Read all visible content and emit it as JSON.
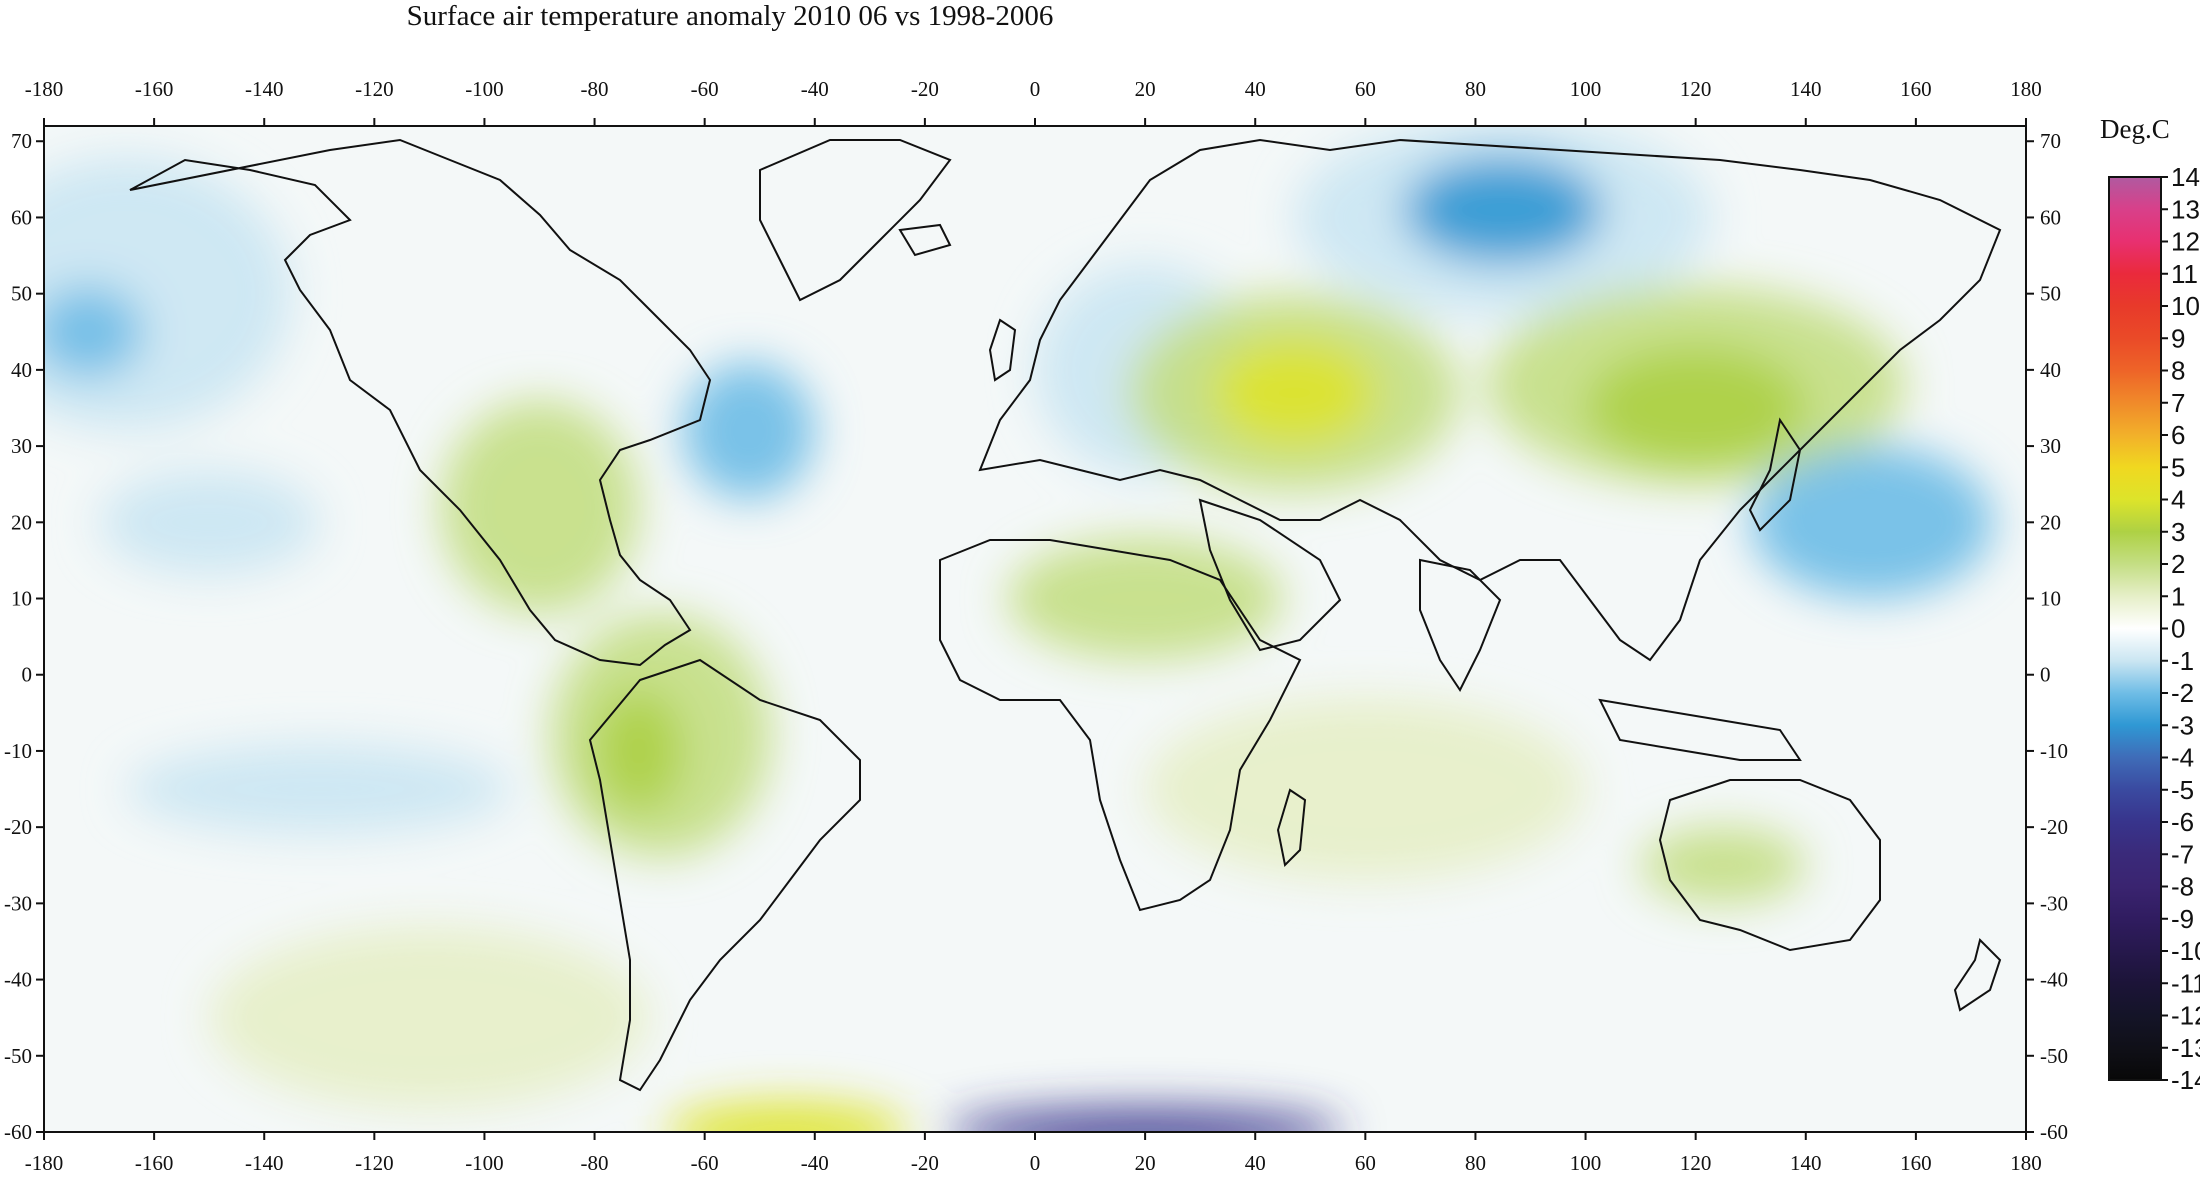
{
  "title": "Surface air temperature anomaly 2010 06 vs 1998-2006",
  "colorbar": {
    "unit_label": "Deg.C",
    "min": -14,
    "max": 14,
    "ticks": [
      14,
      13,
      12,
      11,
      10,
      9,
      8,
      7,
      6,
      5,
      4,
      3,
      2,
      1,
      0,
      -1,
      -2,
      -3,
      -4,
      -5,
      -6,
      -7,
      -8,
      -9,
      -10,
      -11,
      -12,
      -13,
      -14
    ],
    "tick_labels": [
      "14",
      "13",
      "12",
      "11",
      "10",
      "9",
      "8",
      "7",
      "6",
      "5",
      "4",
      "3",
      "2",
      "1",
      "0",
      "-1",
      "-2",
      "-3",
      "-4",
      "-5",
      "-6",
      "-7",
      "-8",
      "-9",
      "-10",
      "-11",
      "-12",
      "-13",
      "-14"
    ],
    "colors": [
      {
        "value": 14,
        "color": "#b05aa0"
      },
      {
        "value": 13,
        "color": "#d8408a"
      },
      {
        "value": 12,
        "color": "#e83070"
      },
      {
        "value": 11,
        "color": "#ea2a3c"
      },
      {
        "value": 10,
        "color": "#e83a2a"
      },
      {
        "value": 9,
        "color": "#ea4a28"
      },
      {
        "value": 8,
        "color": "#ee6428"
      },
      {
        "value": 7,
        "color": "#f08a2a"
      },
      {
        "value": 6,
        "color": "#f2b02a"
      },
      {
        "value": 5,
        "color": "#f0d820"
      },
      {
        "value": 4,
        "color": "#dde42a"
      },
      {
        "value": 3,
        "color": "#aed144"
      },
      {
        "value": 2,
        "color": "#c4de84"
      },
      {
        "value": 1,
        "color": "#e6efc8"
      },
      {
        "value": 0,
        "color": "#ffffff"
      },
      {
        "value": -1,
        "color": "#cbe6f2"
      },
      {
        "value": -2,
        "color": "#6fbde6"
      },
      {
        "value": -3,
        "color": "#2f98d4"
      },
      {
        "value": -4,
        "color": "#3f6cb8"
      },
      {
        "value": -5,
        "color": "#3a4aa0"
      },
      {
        "value": -6,
        "color": "#38348c"
      },
      {
        "value": -7,
        "color": "#3a2a7a"
      },
      {
        "value": -8,
        "color": "#3a2470"
      },
      {
        "value": -9,
        "color": "#301c60"
      },
      {
        "value": -10,
        "color": "#26184c"
      },
      {
        "value": -11,
        "color": "#1c1438"
      },
      {
        "value": -12,
        "color": "#141428"
      },
      {
        "value": -13,
        "color": "#101018"
      },
      {
        "value": -14,
        "color": "#080808"
      }
    ]
  },
  "axes": {
    "lon_range": [
      -180,
      180
    ],
    "lat_range": [
      -60,
      72
    ],
    "lon_ticks": [
      -180,
      -160,
      -140,
      -120,
      -100,
      -80,
      -60,
      -40,
      -20,
      0,
      20,
      40,
      60,
      80,
      100,
      120,
      140,
      160,
      180
    ],
    "lon_tick_labels": [
      "-180",
      "-160",
      "-140",
      "-120",
      "-100",
      "-80",
      "-60",
      "-40",
      "-20",
      "0",
      "20",
      "40",
      "60",
      "80",
      "100",
      "120",
      "140",
      "160",
      "180"
    ],
    "lat_ticks": [
      70,
      60,
      50,
      40,
      30,
      20,
      10,
      0,
      -10,
      -20,
      -30,
      -40,
      -50,
      -60
    ],
    "lat_tick_labels": [
      "70",
      "60",
      "50",
      "40",
      "30",
      "20",
      "10",
      "0",
      "-10",
      "-20",
      "-30",
      "-40",
      "-50",
      "-60"
    ]
  },
  "anomaly_regions": [
    {
      "lon": 47,
      "lat": 37,
      "value": 4,
      "rlon": 15,
      "rlat": 7
    },
    {
      "lon": 47,
      "lat": 37,
      "value": 2,
      "rlon": 30,
      "rlat": 13
    },
    {
      "lon": 120,
      "lat": 35,
      "value": 3,
      "rlon": 20,
      "rlat": 8
    },
    {
      "lon": 120,
      "lat": 38,
      "value": 2,
      "rlon": 38,
      "rlat": 13
    },
    {
      "lon": 85,
      "lat": 61,
      "value": -3,
      "rlon": 18,
      "rlat": 7
    },
    {
      "lon": 85,
      "lat": 60,
      "value": -1,
      "rlon": 38,
      "rlat": 13
    },
    {
      "lon": -90,
      "lat": 22,
      "value": 2,
      "rlon": 18,
      "rlat": 14
    },
    {
      "lon": -52,
      "lat": 32,
      "value": -2,
      "rlon": 12,
      "rlat": 9
    },
    {
      "lon": -165,
      "lat": 50,
      "value": -1,
      "rlon": 30,
      "rlat": 18
    },
    {
      "lon": -172,
      "lat": 45,
      "value": -2,
      "rlon": 10,
      "rlat": 6
    },
    {
      "lon": -72,
      "lat": -10,
      "value": 3,
      "rlon": 8,
      "rlat": 8
    },
    {
      "lon": -68,
      "lat": -8,
      "value": 2,
      "rlon": 20,
      "rlat": 16
    },
    {
      "lon": 20,
      "lat": 10,
      "value": 2,
      "rlon": 25,
      "rlat": 8
    },
    {
      "lon": 20,
      "lat": 40,
      "value": -1,
      "rlon": 20,
      "rlat": 14
    },
    {
      "lon": 152,
      "lat": 20,
      "value": -2,
      "rlon": 22,
      "rlat": 10
    },
    {
      "lon": -45,
      "lat": -60,
      "value": 4,
      "rlon": 22,
      "rlat": 4
    },
    {
      "lon": 20,
      "lat": -60,
      "value": -6,
      "rlon": 36,
      "rlat": 3
    },
    {
      "lon": 125,
      "lat": -25,
      "value": 2,
      "rlon": 15,
      "rlat": 5
    },
    {
      "lon": -130,
      "lat": -15,
      "value": -1,
      "rlon": 35,
      "rlat": 6
    },
    {
      "lon": -110,
      "lat": -45,
      "value": 1,
      "rlon": 40,
      "rlat": 12
    },
    {
      "lon": 60,
      "lat": -15,
      "value": 1,
      "rlon": 40,
      "rlat": 12
    },
    {
      "lon": -150,
      "lat": 20,
      "value": -1,
      "rlon": 20,
      "rlat": 7
    }
  ]
}
